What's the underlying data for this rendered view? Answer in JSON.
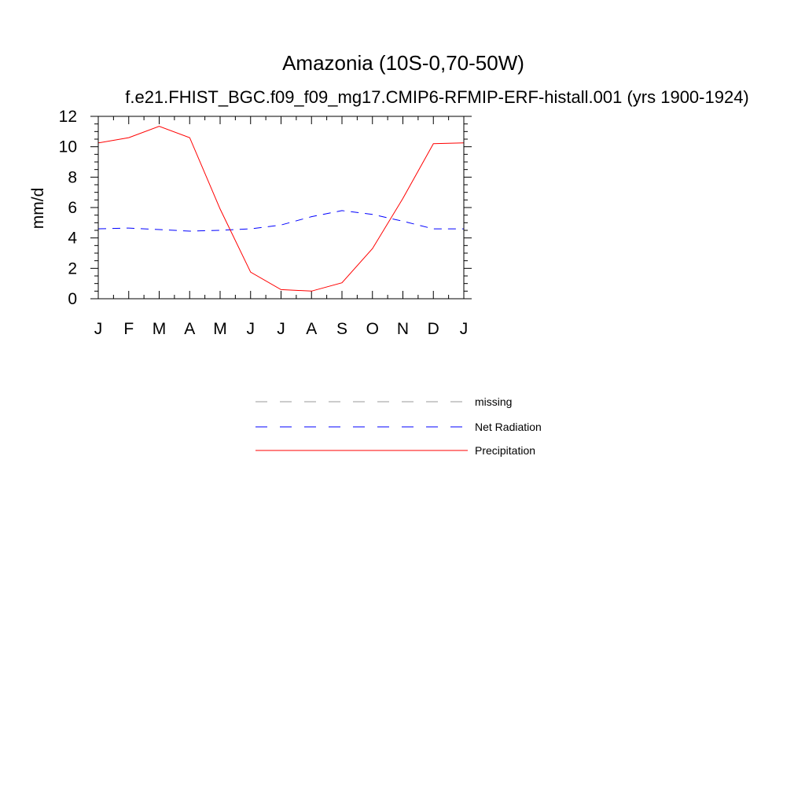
{
  "chart_data": {
    "type": "line",
    "title": "Amazonia (10S-0,70-50W)",
    "subtitle": "f.e21.FHIST_BGC.f09_f09_mg17.CMIP6-RFMIP-ERF-histall.001 (yrs 1900-1924)",
    "xlabel": "",
    "ylabel": "mm/d",
    "x_tick_labels": [
      "J",
      "F",
      "M",
      "A",
      "M",
      "J",
      "J",
      "A",
      "S",
      "O",
      "N",
      "D",
      "J"
    ],
    "y_ticks": [
      "0",
      "2",
      "4",
      "6",
      "8",
      "10",
      "12"
    ],
    "ylim": [
      0,
      12
    ],
    "grid": false,
    "legend_position": "below",
    "series": [
      {
        "name": "missing",
        "style": "dashed",
        "color": "#999999",
        "values": []
      },
      {
        "name": "Net Radiation",
        "style": "dashed",
        "color": "#0000ff",
        "values": [
          4.6,
          4.65,
          4.55,
          4.45,
          4.5,
          4.6,
          4.85,
          5.4,
          5.8,
          5.55,
          5.1,
          4.6,
          4.6
        ]
      },
      {
        "name": "Precipitation",
        "style": "solid",
        "color": "#ff0000",
        "values": [
          10.25,
          10.6,
          11.35,
          10.6,
          5.9,
          1.75,
          0.6,
          0.5,
          1.05,
          3.3,
          6.6,
          10.2,
          10.25
        ]
      }
    ]
  }
}
